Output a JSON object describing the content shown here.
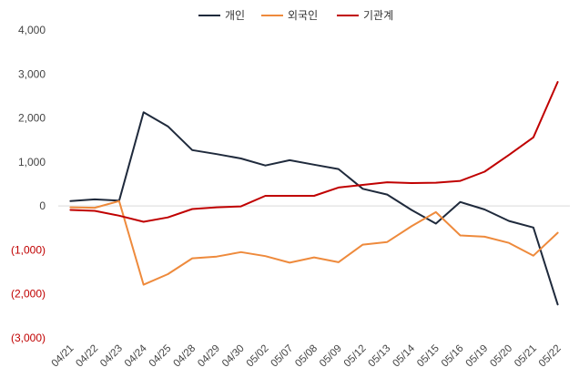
{
  "chart_data": {
    "type": "line",
    "title": "",
    "xlabel": "",
    "ylabel": "",
    "ylim": [
      -3000,
      4000
    ],
    "y_ticks": [
      4000,
      3000,
      2000,
      1000,
      0,
      -1000,
      -2000,
      -3000
    ],
    "y_tick_labels": [
      "4,000",
      "3,000",
      "2,000",
      "1,000",
      "0",
      "(1,000)",
      "(2,000)",
      "(3,000)"
    ],
    "negative_label_color": "#c00000",
    "grid": false,
    "zero_line": true,
    "legend_position": "top-center",
    "categories": [
      "04/21",
      "04/22",
      "04/23",
      "04/24",
      "04/25",
      "04/28",
      "04/29",
      "04/30",
      "05/02",
      "05/07",
      "05/08",
      "05/09",
      "05/12",
      "05/13",
      "05/14",
      "05/15",
      "05/16",
      "05/19",
      "05/20",
      "05/21",
      "05/22"
    ],
    "series": [
      {
        "name": "개인",
        "color": "#1f2a3c",
        "values": [
          110,
          150,
          120,
          2130,
          1810,
          1270,
          1180,
          1080,
          920,
          1040,
          940,
          840,
          390,
          260,
          -90,
          -400,
          90,
          -80,
          -340,
          -490,
          -2240
        ]
      },
      {
        "name": "외국인",
        "color": "#ee8a3c",
        "values": [
          -30,
          -40,
          110,
          -1790,
          -1550,
          -1190,
          -1150,
          -1050,
          -1140,
          -1290,
          -1170,
          -1280,
          -880,
          -820,
          -460,
          -140,
          -670,
          -700,
          -840,
          -1130,
          -610
        ]
      },
      {
        "name": "기관계",
        "color": "#c00000",
        "values": [
          -90,
          -110,
          -220,
          -360,
          -260,
          -70,
          -30,
          -10,
          230,
          230,
          230,
          420,
          480,
          540,
          520,
          530,
          570,
          780,
          1160,
          1560,
          2820
        ]
      }
    ]
  }
}
